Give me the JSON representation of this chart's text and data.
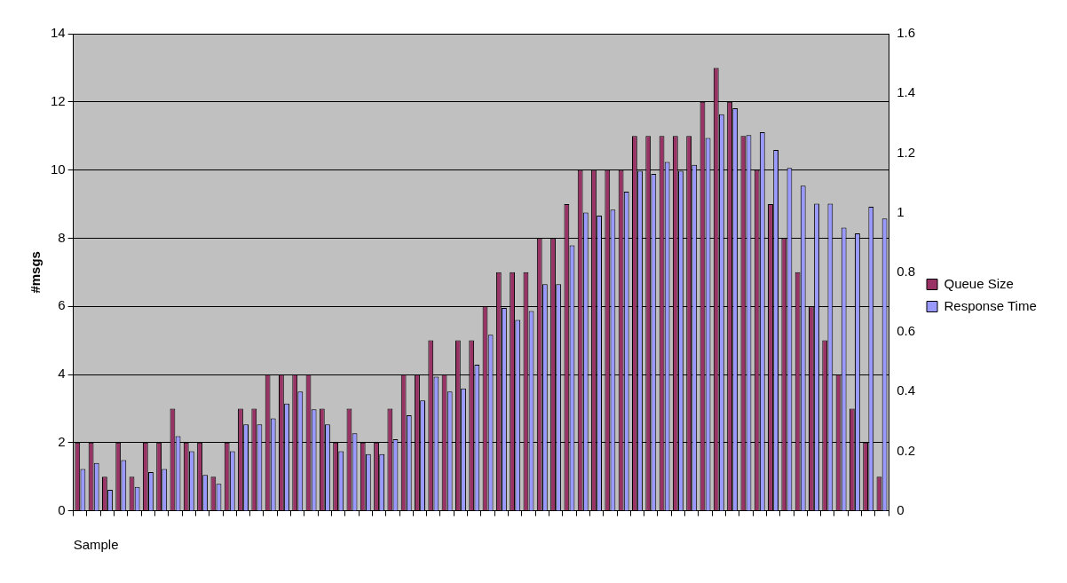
{
  "chart_data": {
    "type": "bar",
    "xlabel": "Sample",
    "ylabel": "#msgs",
    "categories": [
      null,
      null,
      null,
      null,
      null,
      null,
      null,
      null,
      null,
      null,
      null,
      null,
      null,
      null,
      null,
      null,
      null,
      null,
      null,
      null,
      null,
      null,
      null,
      null,
      null,
      null,
      null,
      null,
      null,
      null,
      null,
      null,
      null,
      null,
      null,
      null,
      null,
      null,
      null,
      null,
      null,
      null,
      null,
      null,
      null,
      null,
      null,
      null,
      null,
      null,
      null,
      null,
      null,
      null,
      null,
      null,
      null,
      null,
      null,
      null
    ],
    "series": [
      {
        "name": "Queue Size",
        "color": "#993366",
        "values": [
          2,
          2,
          1,
          2,
          1,
          2,
          2,
          3,
          2,
          2,
          1,
          2,
          3,
          3,
          4,
          4,
          4,
          4,
          3,
          2,
          3,
          2,
          2,
          3,
          4,
          4,
          5,
          4,
          5,
          5,
          6,
          7,
          7,
          7,
          8,
          8,
          9,
          10,
          10,
          10,
          10,
          11,
          11,
          11,
          11,
          11,
          12,
          13,
          12,
          11,
          10,
          9,
          8,
          7,
          6,
          5,
          4,
          3,
          2,
          1
        ]
      },
      {
        "name": "Response Time",
        "color": "#9999ff",
        "axis": "y2",
        "values": [
          0.14,
          0.16,
          0.07,
          0.17,
          0.08,
          0.13,
          0.14,
          0.25,
          0.2,
          0.12,
          0.09,
          0.2,
          0.29,
          0.29,
          0.31,
          0.36,
          0.4,
          0.34,
          0.29,
          0.2,
          0.26,
          0.19,
          0.19,
          0.24,
          0.32,
          0.37,
          0.45,
          0.4,
          0.41,
          0.49,
          0.59,
          0.68,
          0.64,
          0.67,
          0.76,
          0.76,
          0.89,
          1.0,
          0.99,
          1.01,
          1.07,
          1.14,
          1.13,
          1.17,
          1.14,
          1.16,
          1.25,
          1.33,
          1.35,
          1.26,
          1.27,
          1.21,
          1.15,
          1.09,
          1.03,
          1.03,
          0.95,
          0.93,
          1.02,
          0.98
        ]
      }
    ],
    "ylim": [
      0,
      14
    ],
    "yticks": [
      0,
      2,
      4,
      6,
      8,
      10,
      12,
      14
    ],
    "y2lim": [
      0,
      1.6
    ],
    "y2ticks": [
      0,
      0.2,
      0.4,
      0.6,
      0.8,
      1,
      1.2,
      1.4,
      1.6
    ],
    "grid": "y",
    "legend": "right"
  }
}
